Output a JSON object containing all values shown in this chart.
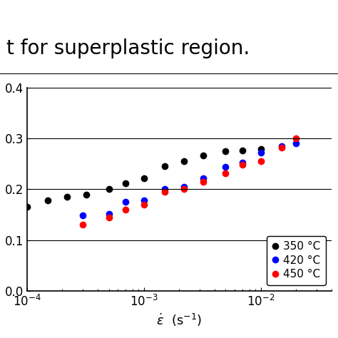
{
  "header_text": "t for superplastic region.",
  "xlabel_math": "$\\dot{\\varepsilon}$  (s$^{-1}$)",
  "ylim": [
    0.0,
    0.4
  ],
  "yticks": [
    0.0,
    0.1,
    0.2,
    0.3,
    0.4
  ],
  "xlim": [
    0.0001,
    0.04
  ],
  "series": [
    {
      "label": "350 °C",
      "color": "black",
      "x": [
        0.0001,
        0.00015,
        0.00022,
        0.00032,
        0.0005,
        0.0007,
        0.001,
        0.0015,
        0.0022,
        0.0032,
        0.005,
        0.007,
        0.01
      ],
      "y": [
        0.165,
        0.178,
        0.185,
        0.19,
        0.201,
        0.212,
        0.222,
        0.245,
        0.255,
        0.267,
        0.275,
        0.277,
        0.28
      ]
    },
    {
      "label": "420 °C",
      "color": "blue",
      "x": [
        0.0003,
        0.0005,
        0.0007,
        0.001,
        0.0015,
        0.0022,
        0.0032,
        0.005,
        0.007,
        0.01,
        0.015,
        0.02
      ],
      "y": [
        0.148,
        0.152,
        0.175,
        0.178,
        0.2,
        0.205,
        0.222,
        0.244,
        0.253,
        0.272,
        0.285,
        0.29
      ]
    },
    {
      "label": "450 °C",
      "color": "red",
      "x": [
        0.0003,
        0.0005,
        0.0007,
        0.001,
        0.0015,
        0.0022,
        0.0032,
        0.005,
        0.007,
        0.01,
        0.015,
        0.02
      ],
      "y": [
        0.13,
        0.145,
        0.16,
        0.17,
        0.195,
        0.2,
        0.215,
        0.232,
        0.248,
        0.255,
        0.282,
        0.3
      ]
    }
  ],
  "legend_loc": "lower right",
  "marker_size": 7,
  "background_color": "#ffffff",
  "header_fontsize": 20,
  "axis_fontsize": 13,
  "tick_fontsize": 12,
  "legend_fontsize": 11
}
